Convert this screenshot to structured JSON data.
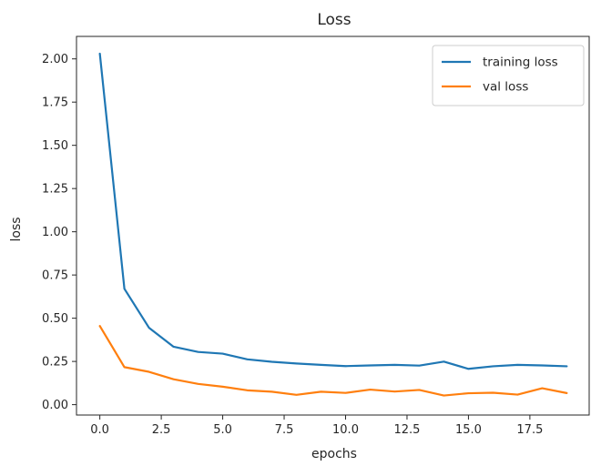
{
  "chart_data": {
    "type": "line",
    "title": "Loss",
    "xlabel": "epochs",
    "ylabel": "loss",
    "xlim": [
      -0.95,
      19.95
    ],
    "ylim": [
      -0.06,
      2.13
    ],
    "xticks": [
      0,
      2.5,
      5,
      7.5,
      10,
      12.5,
      15,
      17.5
    ],
    "xtick_labels": [
      "0.0",
      "2.5",
      "5.0",
      "7.5",
      "10.0",
      "12.5",
      "15.0",
      "17.5"
    ],
    "yticks": [
      0,
      0.25,
      0.5,
      0.75,
      1.0,
      1.25,
      1.5,
      1.75,
      2.0
    ],
    "ytick_labels": [
      "0.00",
      "0.25",
      "0.50",
      "0.75",
      "1.00",
      "1.25",
      "1.50",
      "1.75",
      "2.00"
    ],
    "grid": false,
    "legend_position": "top-right",
    "x": [
      0,
      1,
      2,
      3,
      4,
      5,
      6,
      7,
      8,
      9,
      10,
      11,
      12,
      13,
      14,
      15,
      16,
      17,
      18,
      19
    ],
    "series": [
      {
        "name": "training loss",
        "color": "#1f77b4",
        "values": [
          2.03,
          0.67,
          0.445,
          0.335,
          0.305,
          0.295,
          0.262,
          0.248,
          0.238,
          0.23,
          0.223,
          0.227,
          0.23,
          0.226,
          0.249,
          0.207,
          0.222,
          0.23,
          0.227,
          0.222
        ]
      },
      {
        "name": "val loss",
        "color": "#ff7f0e",
        "values": [
          0.455,
          0.217,
          0.19,
          0.147,
          0.12,
          0.104,
          0.083,
          0.075,
          0.057,
          0.075,
          0.068,
          0.087,
          0.076,
          0.085,
          0.053,
          0.066,
          0.069,
          0.058,
          0.095,
          0.067
        ]
      }
    ]
  }
}
